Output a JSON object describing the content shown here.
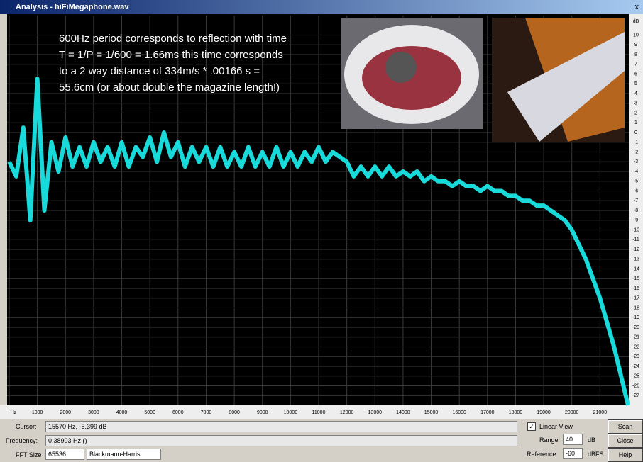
{
  "window": {
    "title": "Analysis - hiFiMegaphone.wav",
    "close": "x"
  },
  "chart_data": {
    "type": "line",
    "annotation": [
      "600Hz period corresponds to reflection with time",
      "T = 1/P = 1/600 = 1.66ms this time corresponds",
      "to a 2 way distance of  334m/s * .00166 s =",
      "55.6cm (or about double the magazine length!)"
    ],
    "y_label": "dB",
    "x": [
      0,
      250,
      500,
      750,
      1000,
      1250,
      1500,
      1750,
      2000,
      2250,
      2500,
      2750,
      3000,
      3250,
      3500,
      3750,
      4000,
      4250,
      4500,
      4750,
      5000,
      5250,
      5500,
      5750,
      6000,
      6250,
      6500,
      6750,
      7000,
      7250,
      7500,
      7750,
      8000,
      8250,
      8500,
      8750,
      9000,
      9250,
      9500,
      9750,
      10000,
      10250,
      10500,
      10750,
      11000,
      11250,
      11500,
      11750,
      12000,
      12250,
      12500,
      12750,
      13000,
      13250,
      13500,
      13750,
      14000,
      14250,
      14500,
      14750,
      15000,
      15250,
      15500,
      15750,
      16000,
      16250,
      16500,
      16750,
      17000,
      17250,
      17500,
      17750,
      18000,
      18250,
      18500,
      18750,
      19000,
      19250,
      19500,
      19750,
      20000,
      20250,
      20500,
      20750,
      21000,
      21250,
      21500,
      21750,
      22000
    ],
    "values": [
      -3,
      -4.5,
      0.5,
      -9,
      5.5,
      -8,
      -1,
      -4,
      -0.5,
      -3.5,
      -1.5,
      -3.5,
      -1,
      -3,
      -1.5,
      -3.5,
      -1,
      -3.5,
      -1.5,
      -2.5,
      -0.5,
      -3,
      0,
      -2.5,
      -1,
      -3.5,
      -1.5,
      -3,
      -1.5,
      -3.5,
      -1.5,
      -3.5,
      -2,
      -3.5,
      -1.5,
      -3.5,
      -2,
      -3.5,
      -1.5,
      -3.5,
      -2,
      -3.5,
      -2,
      -3,
      -1.5,
      -3,
      -2,
      -2.5,
      -3,
      -4.5,
      -3.5,
      -4.5,
      -3.5,
      -4.5,
      -3.5,
      -4.5,
      -4,
      -4.5,
      -4,
      -5,
      -4.5,
      -5,
      -5,
      -5.5,
      -5,
      -5.5,
      -5.5,
      -6,
      -5.5,
      -6,
      -6,
      -6.5,
      -6.5,
      -7,
      -7,
      -7.5,
      -7.5,
      -8,
      -8.5,
      -9,
      -10,
      -11.5,
      -13,
      -15,
      -17,
      -19.5,
      -22,
      -25,
      -28
    ],
    "color": "#19e6e6",
    "xlim": [
      0,
      22000
    ],
    "xticks": [
      {
        "value": 0,
        "label": "Hz"
      },
      1000,
      2000,
      3000,
      4000,
      5000,
      6000,
      7000,
      8000,
      9000,
      10000,
      11000,
      12000,
      13000,
      14000,
      15000,
      16000,
      17000,
      18000,
      19000,
      20000,
      21000
    ],
    "ylim": [
      -28,
      12
    ],
    "yticks": [
      10,
      9,
      8,
      7,
      6,
      5,
      4,
      3,
      2,
      1,
      0,
      -1,
      -2,
      -3,
      -4,
      -5,
      -6,
      -7,
      -8,
      -9,
      -10,
      -11,
      -12,
      -13,
      -14,
      -15,
      -16,
      -17,
      -18,
      -19,
      -20,
      -21,
      -22,
      -23,
      -24,
      -25,
      -26,
      -27
    ],
    "grid": true
  },
  "controls": {
    "cursor_label": "Cursor:",
    "cursor_value": "15570 Hz, -5.399 dB",
    "frequency_label": "Frequency:",
    "frequency_value": "0.38903 Hz ()",
    "fft_label": "FFT Size",
    "fft_value": "65536",
    "window_value": "Blackmann-Harris",
    "linear_view": "Linear View",
    "range_label": "Range",
    "range_value": "40",
    "range_unit": "dB",
    "reference_label": "Reference",
    "reference_value": "-60",
    "reference_unit": "dBFS",
    "buttons": [
      "Scan",
      "Close",
      "Help"
    ]
  }
}
